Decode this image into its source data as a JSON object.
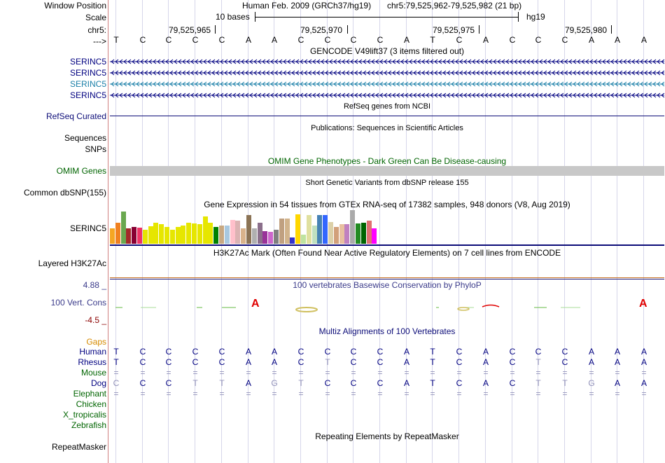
{
  "header": {
    "window_position_label": "Window Position",
    "scale_label": "Scale",
    "chrom_label": "chr5:",
    "strand_label": "--->",
    "assembly": "Human Feb. 2009 (GRCh37/hg19)",
    "position": "chr5:79,525,962-79,525,982 (21 bp)",
    "scale_text": "10 bases",
    "db": "hg19",
    "coord_ticks": [
      "79,525,965",
      "79,525,970",
      "79,525,975",
      "79,525,980"
    ]
  },
  "bases": [
    "T",
    "C",
    "C",
    "C",
    "C",
    "A",
    "A",
    "C",
    "C",
    "C",
    "C",
    "A",
    "T",
    "C",
    "A",
    "C",
    "C",
    "C",
    "A",
    "A",
    "A"
  ],
  "gencode": {
    "title": "GENCODE V49lift37 (3 items filtered out)",
    "tracks": [
      {
        "label": "SERINC5",
        "color": "#000080"
      },
      {
        "label": "SERINC5",
        "color": "#000080"
      },
      {
        "label": "SERINC5",
        "color": "#1a7fa8"
      },
      {
        "label": "SERINC5",
        "color": "#000080"
      }
    ]
  },
  "refseq": {
    "title": "RefSeq genes from NCBI",
    "label": "RefSeq Curated"
  },
  "publications": {
    "title": "Publications: Sequences in Scientific Articles",
    "label1": "Sequences",
    "label2": "SNPs"
  },
  "omim": {
    "title": "OMIM Gene Phenotypes - Dark Green Can Be Disease-causing",
    "label": "OMIM Genes"
  },
  "dbsnp": {
    "title": "Short Genetic Variants from dbSNP release 155",
    "label": "Common dbSNP(155)"
  },
  "gtex": {
    "title": "Gene Expression in 54 tissues from GTEx RNA-seq of 17382 samples, 948 donors (V8, Aug 2019)",
    "label": "SERINC5",
    "bars": [
      {
        "c": "#f5a623",
        "v": 0.45
      },
      {
        "c": "#f08020",
        "v": 0.62
      },
      {
        "c": "#6aa84f",
        "v": 0.95
      },
      {
        "c": "#a52a2a",
        "v": 0.45
      },
      {
        "c": "#880033",
        "v": 0.5
      },
      {
        "c": "#ee3366",
        "v": 0.48
      },
      {
        "c": "#e6e600",
        "v": 0.42
      },
      {
        "c": "#e6e600",
        "v": 0.52
      },
      {
        "c": "#e6e600",
        "v": 0.62
      },
      {
        "c": "#e6e600",
        "v": 0.58
      },
      {
        "c": "#e6e600",
        "v": 0.5
      },
      {
        "c": "#e6e600",
        "v": 0.42
      },
      {
        "c": "#e6e600",
        "v": 0.5
      },
      {
        "c": "#e6e600",
        "v": 0.55
      },
      {
        "c": "#e6e600",
        "v": 0.62
      },
      {
        "c": "#e6e600",
        "v": 0.6
      },
      {
        "c": "#e6e600",
        "v": 0.58
      },
      {
        "c": "#e6e600",
        "v": 0.82
      },
      {
        "c": "#e6e600",
        "v": 0.62
      },
      {
        "c": "#008000",
        "v": 0.5
      },
      {
        "c": "#c8a882",
        "v": 0.55
      },
      {
        "c": "#a8c8e0",
        "v": 0.55
      },
      {
        "c": "#ffc0cb",
        "v": 0.7
      },
      {
        "c": "#dbb3b3",
        "v": 0.68
      },
      {
        "c": "#d9b38c",
        "v": 0.45
      },
      {
        "c": "#8b7355",
        "v": 0.85
      },
      {
        "c": "#b0b0b0",
        "v": 0.45
      },
      {
        "c": "#8b6f8b",
        "v": 0.62
      },
      {
        "c": "#993399",
        "v": 0.38
      },
      {
        "c": "#cc66cc",
        "v": 0.35
      },
      {
        "c": "#7f7f7f",
        "v": 0.42
      },
      {
        "c": "#c0a080",
        "v": 0.75
      },
      {
        "c": "#d2b48c",
        "v": 0.75
      },
      {
        "c": "#3333cc",
        "v": 0.18
      },
      {
        "c": "#ffd700",
        "v": 0.88
      },
      {
        "c": "#bfe3a0",
        "v": 0.28
      },
      {
        "c": "#e0e0a0",
        "v": 0.85
      },
      {
        "c": "#c0e0c0",
        "v": 0.55
      },
      {
        "c": "#4682b4",
        "v": 0.85
      },
      {
        "c": "#3366ff",
        "v": 0.85
      },
      {
        "c": "#dcd0a8",
        "v": 0.65
      },
      {
        "c": "#d2a07a",
        "v": 0.5
      },
      {
        "c": "#e8c0a0",
        "v": 0.58
      },
      {
        "c": "#c080c0",
        "v": 0.58
      },
      {
        "c": "#aaaaaa",
        "v": 1.0
      },
      {
        "c": "#228b22",
        "v": 0.6
      },
      {
        "c": "#006400",
        "v": 0.62
      },
      {
        "c": "#e07070",
        "v": 0.68
      },
      {
        "c": "#ff00ff",
        "v": 0.45
      }
    ]
  },
  "h3k27ac": {
    "title": "H3K27Ac Mark (Often Found Near Active Regulatory Elements) on 7 cell lines from ENCODE",
    "label": "Layered H3K27Ac"
  },
  "phylop": {
    "title": "100 vertebrates Basewise Conservation by PhyloP",
    "label": "100 Vert. Cons",
    "max": "4.88 _",
    "min": "-4.5 _"
  },
  "multiz": {
    "title": "Multiz Alignments of 100 Vertebrates",
    "gaps_label": "Gaps",
    "species": [
      {
        "name": "Human",
        "color": "#000080",
        "seq": [
          "T",
          "C",
          "C",
          "C",
          "C",
          "A",
          "A",
          "C",
          "C",
          "C",
          "C",
          "A",
          "T",
          "C",
          "A",
          "C",
          "C",
          "C",
          "A",
          "A",
          "A"
        ],
        "dim": []
      },
      {
        "name": "Rhesus",
        "color": "#000080",
        "seq": [
          "T",
          "C",
          "C",
          "C",
          "C",
          "A",
          "A",
          "C",
          "T",
          "C",
          "C",
          "A",
          "T",
          "C",
          "A",
          "C",
          "T",
          "C",
          "A",
          "A",
          "A"
        ],
        "dim": [
          8,
          16
        ]
      },
      {
        "name": "Mouse",
        "color": "#006400",
        "seq": [
          "=",
          "=",
          "=",
          "=",
          "=",
          "=",
          "=",
          "=",
          "=",
          "=",
          "=",
          "=",
          "=",
          "=",
          "=",
          "=",
          "=",
          "=",
          "=",
          "=",
          "="
        ],
        "dim": "all"
      },
      {
        "name": "Dog",
        "color": "#000080",
        "seq": [
          "C",
          "C",
          "C",
          "T",
          "T",
          "A",
          "G",
          "T",
          "C",
          "C",
          "C",
          "A",
          "T",
          "C",
          "A",
          "C",
          "T",
          "T",
          "G",
          "A",
          "A"
        ],
        "dim": [
          0,
          3,
          4,
          6,
          7,
          16,
          17,
          18
        ]
      },
      {
        "name": "Elephant",
        "color": "#006400",
        "seq": [
          "=",
          "=",
          "=",
          "=",
          "=",
          "=",
          "=",
          "=",
          "=",
          "=",
          "=",
          "=",
          "=",
          "=",
          "=",
          "=",
          "=",
          "=",
          "=",
          "=",
          "="
        ],
        "dim": "all"
      },
      {
        "name": "Chicken",
        "color": "#006400",
        "seq": [],
        "dim": []
      },
      {
        "name": "X_tropicalis",
        "color": "#006400",
        "seq": [],
        "dim": []
      },
      {
        "name": "Zebrafish",
        "color": "#006400",
        "seq": [],
        "dim": []
      }
    ]
  },
  "repeatmasker": {
    "title": "Repeating Elements by RepeatMasker",
    "label": "RepeatMasker"
  }
}
